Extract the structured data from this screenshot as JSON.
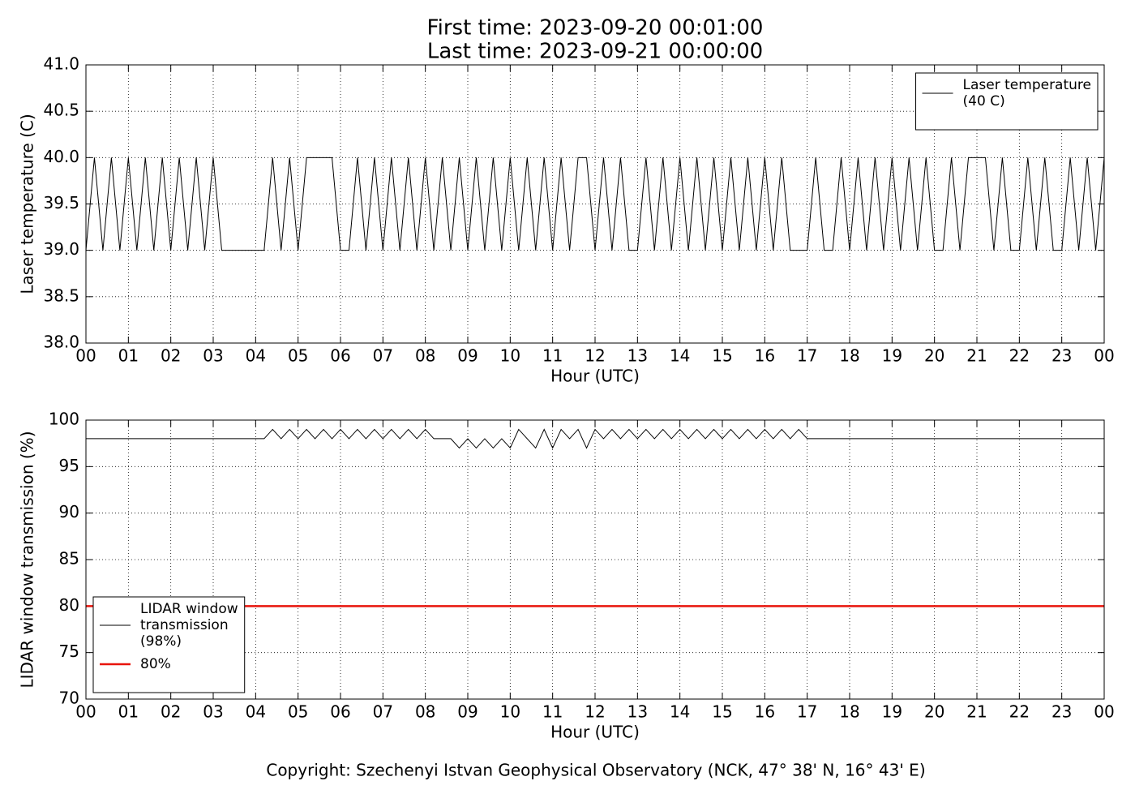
{
  "chart_data": [
    {
      "type": "line",
      "title": "First time: 2023-09-20 00:01:00",
      "subtitle": "Last time: 2023-09-21 00:00:00",
      "x_label": "Hour (UTC)",
      "y_label": "Laser temperature (C)",
      "xlim": [
        0,
        24
      ],
      "xticks": [
        {
          "value": 0,
          "label": "00"
        },
        {
          "value": 1,
          "label": "01"
        },
        {
          "value": 2,
          "label": "02"
        },
        {
          "value": 3,
          "label": "03"
        },
        {
          "value": 4,
          "label": "04"
        },
        {
          "value": 5,
          "label": "05"
        },
        {
          "value": 6,
          "label": "06"
        },
        {
          "value": 7,
          "label": "07"
        },
        {
          "value": 8,
          "label": "08"
        },
        {
          "value": 9,
          "label": "09"
        },
        {
          "value": 10,
          "label": "10"
        },
        {
          "value": 11,
          "label": "11"
        },
        {
          "value": 12,
          "label": "12"
        },
        {
          "value": 13,
          "label": "13"
        },
        {
          "value": 14,
          "label": "14"
        },
        {
          "value": 15,
          "label": "15"
        },
        {
          "value": 16,
          "label": "16"
        },
        {
          "value": 17,
          "label": "17"
        },
        {
          "value": 18,
          "label": "18"
        },
        {
          "value": 19,
          "label": "19"
        },
        {
          "value": 20,
          "label": "20"
        },
        {
          "value": 21,
          "label": "21"
        },
        {
          "value": 22,
          "label": "22"
        },
        {
          "value": 23,
          "label": "23"
        },
        {
          "value": 24,
          "label": "00"
        }
      ],
      "ylim": [
        38,
        41
      ],
      "yticks": [
        {
          "value": 38,
          "label": "38.0"
        },
        {
          "value": 38.5,
          "label": "38.5"
        },
        {
          "value": 39,
          "label": "39.0"
        },
        {
          "value": 39.5,
          "label": "39.5"
        },
        {
          "value": 40,
          "label": "40.0"
        },
        {
          "value": 40.5,
          "label": "40.5"
        },
        {
          "value": 41,
          "label": "41.0"
        }
      ],
      "grid": true,
      "legend": "upper right",
      "x": [
        0,
        0.2,
        0.4,
        0.6,
        0.8,
        1,
        1.2,
        1.4,
        1.6,
        1.8,
        2,
        2.2,
        2.4,
        2.6,
        2.8,
        3,
        3.2,
        3.4,
        3.6,
        3.8,
        4,
        4.2,
        4.4,
        4.6,
        4.8,
        5,
        5.2,
        5.4,
        5.6,
        5.8,
        6,
        6.2,
        6.4,
        6.6,
        6.8,
        7,
        7.2,
        7.4,
        7.6,
        7.8,
        8,
        8.2,
        8.4,
        8.6,
        8.8,
        9,
        9.2,
        9.4,
        9.6,
        9.8,
        10,
        10.2,
        10.4,
        10.6,
        10.8,
        11,
        11.2,
        11.4,
        11.6,
        11.8,
        12,
        12.2,
        12.4,
        12.6,
        12.8,
        13,
        13.2,
        13.4,
        13.6,
        13.8,
        14,
        14.2,
        14.4,
        14.6,
        14.8,
        15,
        15.2,
        15.4,
        15.6,
        15.8,
        16,
        16.2,
        16.4,
        16.6,
        16.8,
        17,
        17.2,
        17.4,
        17.6,
        17.8,
        18,
        18.2,
        18.4,
        18.6,
        18.8,
        19,
        19.2,
        19.4,
        19.6,
        19.8,
        20,
        20.2,
        20.4,
        20.6,
        20.8,
        21,
        21.2,
        21.4,
        21.6,
        21.8,
        22,
        22.2,
        22.4,
        22.6,
        22.8,
        23,
        23.2,
        23.4,
        23.6,
        23.8,
        24
      ],
      "series": [
        {
          "name": "Laser temperature\n(40 C)",
          "color": "#000000",
          "linewidth": 1,
          "values": [
            39,
            40,
            39,
            40,
            39,
            40,
            39,
            40,
            39,
            40,
            39,
            40,
            39,
            40,
            39,
            40,
            39,
            39,
            39,
            39,
            39,
            39,
            40,
            39,
            40,
            39,
            40,
            40,
            40,
            40,
            39,
            39,
            40,
            39,
            40,
            39,
            40,
            39,
            40,
            39,
            40,
            39,
            40,
            39,
            40,
            39,
            40,
            39,
            40,
            39,
            40,
            39,
            40,
            39,
            40,
            39,
            40,
            39,
            40,
            40,
            39,
            40,
            39,
            40,
            39,
            39,
            40,
            39,
            40,
            39,
            40,
            39,
            40,
            39,
            40,
            39,
            40,
            39,
            40,
            39,
            40,
            39,
            40,
            39,
            39,
            39,
            40,
            39,
            39,
            40,
            39,
            40,
            39,
            40,
            39,
            40,
            39,
            40,
            39,
            40,
            39,
            39,
            40,
            39,
            40,
            40,
            40,
            39,
            40,
            39,
            39,
            40,
            39,
            40,
            39,
            39,
            40,
            39,
            40,
            39,
            40
          ]
        }
      ]
    },
    {
      "type": "line",
      "x_label": "Hour (UTC)",
      "y_label": "LIDAR window transmission (%)",
      "xlim": [
        0,
        24
      ],
      "xticks": [
        {
          "value": 0,
          "label": "00"
        },
        {
          "value": 1,
          "label": "01"
        },
        {
          "value": 2,
          "label": "02"
        },
        {
          "value": 3,
          "label": "03"
        },
        {
          "value": 4,
          "label": "04"
        },
        {
          "value": 5,
          "label": "05"
        },
        {
          "value": 6,
          "label": "06"
        },
        {
          "value": 7,
          "label": "07"
        },
        {
          "value": 8,
          "label": "08"
        },
        {
          "value": 9,
          "label": "09"
        },
        {
          "value": 10,
          "label": "10"
        },
        {
          "value": 11,
          "label": "11"
        },
        {
          "value": 12,
          "label": "12"
        },
        {
          "value": 13,
          "label": "13"
        },
        {
          "value": 14,
          "label": "14"
        },
        {
          "value": 15,
          "label": "15"
        },
        {
          "value": 16,
          "label": "16"
        },
        {
          "value": 17,
          "label": "17"
        },
        {
          "value": 18,
          "label": "18"
        },
        {
          "value": 19,
          "label": "19"
        },
        {
          "value": 20,
          "label": "20"
        },
        {
          "value": 21,
          "label": "21"
        },
        {
          "value": 22,
          "label": "22"
        },
        {
          "value": 23,
          "label": "23"
        },
        {
          "value": 24,
          "label": "00"
        }
      ],
      "ylim": [
        70,
        100
      ],
      "yticks": [
        70,
        75,
        80,
        85,
        90,
        95,
        100
      ],
      "grid": true,
      "legend": "lower left",
      "x": [
        0,
        0.2,
        0.4,
        0.6,
        0.8,
        1,
        1.2,
        1.4,
        1.6,
        1.8,
        2,
        2.2,
        2.4,
        2.6,
        2.8,
        3,
        3.2,
        3.4,
        3.6,
        3.8,
        4,
        4.2,
        4.4,
        4.6,
        4.8,
        5,
        5.2,
        5.4,
        5.6,
        5.8,
        6,
        6.2,
        6.4,
        6.6,
        6.8,
        7,
        7.2,
        7.4,
        7.6,
        7.8,
        8,
        8.2,
        8.4,
        8.6,
        8.8,
        9,
        9.2,
        9.4,
        9.6,
        9.8,
        10,
        10.2,
        10.4,
        10.6,
        10.8,
        11,
        11.2,
        11.4,
        11.6,
        11.8,
        12,
        12.2,
        12.4,
        12.6,
        12.8,
        13,
        13.2,
        13.4,
        13.6,
        13.8,
        14,
        14.2,
        14.4,
        14.6,
        14.8,
        15,
        15.2,
        15.4,
        15.6,
        15.8,
        16,
        16.2,
        16.4,
        16.6,
        16.8,
        17,
        17.2,
        17.4,
        17.6,
        17.8,
        18,
        18.2,
        18.4,
        18.6,
        18.8,
        19,
        19.2,
        19.4,
        19.6,
        19.8,
        20,
        20.2,
        20.4,
        20.6,
        20.8,
        21,
        21.2,
        21.4,
        21.6,
        21.8,
        22,
        22.2,
        22.4,
        22.6,
        22.8,
        23,
        23.2,
        23.4,
        23.6,
        23.8,
        24
      ],
      "series": [
        {
          "name": "LIDAR window\ntransmission\n(98%)",
          "color": "#000000",
          "linewidth": 1,
          "values": [
            98,
            98,
            98,
            98,
            98,
            98,
            98,
            98,
            98,
            98,
            98,
            98,
            98,
            98,
            98,
            98,
            98,
            98,
            98,
            98,
            98,
            98,
            99,
            98,
            99,
            98,
            99,
            98,
            99,
            98,
            99,
            98,
            99,
            98,
            99,
            98,
            99,
            98,
            99,
            98,
            99,
            98,
            98,
            98,
            97,
            98,
            97,
            98,
            97,
            98,
            97,
            99,
            98,
            97,
            99,
            97,
            99,
            98,
            99,
            97,
            99,
            98,
            99,
            98,
            99,
            98,
            99,
            98,
            99,
            98,
            99,
            98,
            99,
            98,
            99,
            98,
            99,
            98,
            99,
            98,
            99,
            98,
            99,
            98,
            99,
            98,
            98,
            98,
            98,
            98,
            98,
            98,
            98,
            98,
            98,
            98,
            98,
            98,
            98,
            98,
            98,
            98,
            98,
            98,
            98,
            98,
            98,
            98,
            98,
            98,
            98,
            98,
            98,
            98,
            98,
            98,
            98,
            98,
            98,
            98,
            98
          ]
        },
        {
          "name": "80%",
          "color": "#e8140c",
          "linewidth": 2.5,
          "x": [
            0,
            24
          ],
          "values": [
            80,
            80
          ]
        }
      ]
    }
  ],
  "footer": "Copyright: Szechenyi Istvan Geophysical Observatory (NCK, 47° 38' N, 16° 43' E)"
}
